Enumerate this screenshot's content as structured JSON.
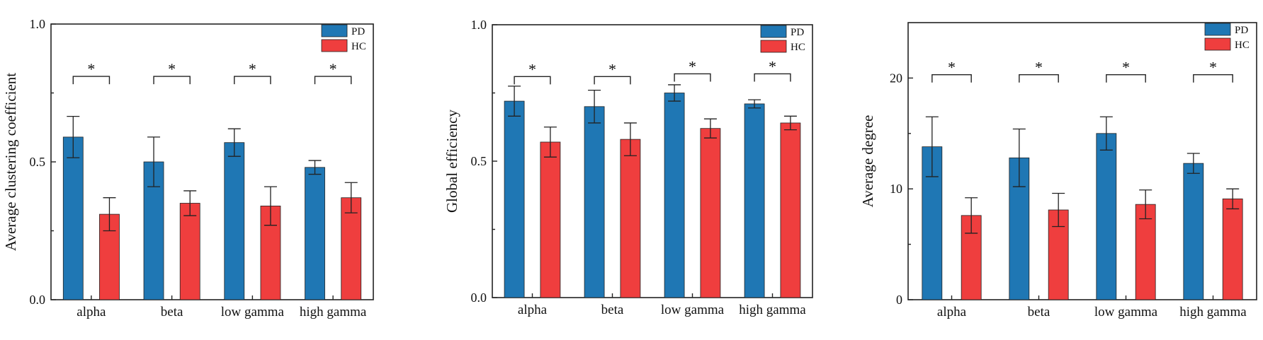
{
  "chart_data": [
    {
      "type": "bar",
      "categories": [
        "alpha",
        "beta",
        "low gamma",
        "high gamma"
      ],
      "ylabel": "Average clustering coefficient",
      "ylim": [
        0,
        1.0
      ],
      "yticks": [
        0.0,
        0.5,
        1.0
      ],
      "ytick_labels": [
        "0.0",
        "0.5",
        "1.0"
      ],
      "series": [
        {
          "name": "PD",
          "color": "#1f77b4",
          "values": [
            0.59,
            0.5,
            0.57,
            0.48
          ],
          "errors": [
            0.075,
            0.09,
            0.05,
            0.025
          ]
        },
        {
          "name": "HC",
          "color": "#ef3e3e",
          "values": [
            0.31,
            0.35,
            0.34,
            0.37
          ],
          "errors": [
            0.06,
            0.045,
            0.07,
            0.055
          ]
        }
      ],
      "significance": [
        {
          "label": "*",
          "level": 0.81
        },
        {
          "label": "*",
          "level": 0.81
        },
        {
          "label": "*",
          "level": 0.81
        },
        {
          "label": "*",
          "level": 0.81
        }
      ],
      "legend": "top-right"
    },
    {
      "type": "bar",
      "categories": [
        "alpha",
        "beta",
        "low gamma",
        "high gamma"
      ],
      "ylabel": "Global efficiency",
      "ylim": [
        0,
        1.0
      ],
      "yticks": [
        0.0,
        0.5,
        1.0
      ],
      "ytick_labels": [
        "0.0",
        "0.5",
        "1.0"
      ],
      "series": [
        {
          "name": "PD",
          "color": "#1f77b4",
          "values": [
            0.72,
            0.7,
            0.75,
            0.71
          ],
          "errors": [
            0.055,
            0.06,
            0.03,
            0.015
          ]
        },
        {
          "name": "HC",
          "color": "#ef3e3e",
          "values": [
            0.57,
            0.58,
            0.62,
            0.64
          ],
          "errors": [
            0.055,
            0.06,
            0.035,
            0.025
          ]
        }
      ],
      "significance": [
        {
          "label": "*",
          "level": 0.81
        },
        {
          "label": "*",
          "level": 0.81
        },
        {
          "label": "*",
          "level": 0.82
        },
        {
          "label": "*",
          "level": 0.82
        }
      ],
      "legend": "top-right"
    },
    {
      "type": "bar",
      "categories": [
        "alpha",
        "beta",
        "low gamma",
        "high gamma"
      ],
      "ylabel": "Average degree",
      "ylim": [
        0,
        25
      ],
      "yticks": [
        0,
        10,
        20
      ],
      "ytick_labels": [
        "0",
        "10",
        "20"
      ],
      "series": [
        {
          "name": "PD",
          "color": "#1f77b4",
          "values": [
            13.8,
            12.8,
            15.0,
            12.3
          ],
          "errors": [
            2.7,
            2.6,
            1.5,
            0.9
          ]
        },
        {
          "name": "HC",
          "color": "#ef3e3e",
          "values": [
            7.6,
            8.1,
            8.6,
            9.1
          ],
          "errors": [
            1.6,
            1.5,
            1.3,
            0.9
          ]
        }
      ],
      "significance": [
        {
          "label": "*",
          "level": 20.3
        },
        {
          "label": "*",
          "level": 20.3
        },
        {
          "label": "*",
          "level": 20.3
        },
        {
          "label": "*",
          "level": 20.3
        }
      ],
      "legend": "top-right"
    }
  ]
}
